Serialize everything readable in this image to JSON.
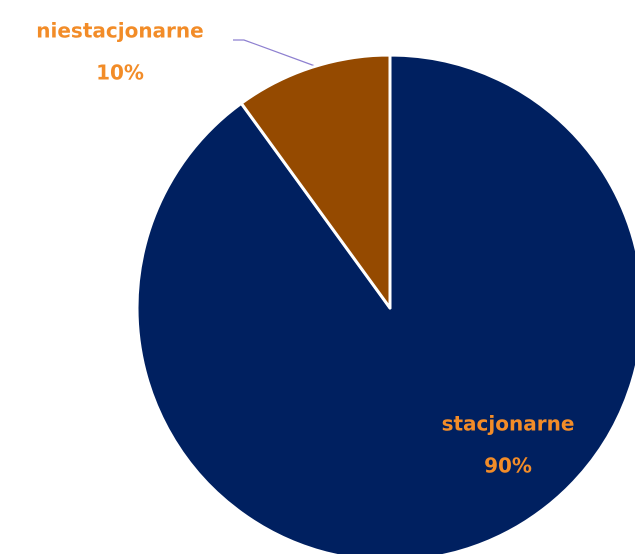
{
  "chart_data": {
    "type": "pie",
    "categories": [
      "stacjonarne",
      "niestacjonarne"
    ],
    "values": [
      90,
      10
    ],
    "value_labels": [
      "90%",
      "10%"
    ],
    "colors": [
      "#002060",
      "#954a00"
    ],
    "label_color": "#f28c28"
  }
}
